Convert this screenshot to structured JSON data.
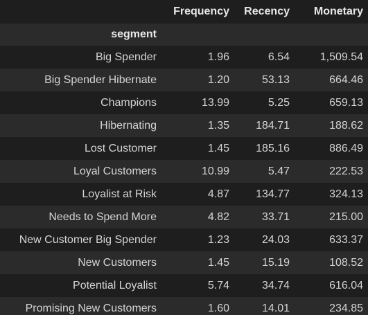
{
  "table": {
    "index_name": "segment",
    "columns": [
      "Frequency",
      "Recency",
      "Monetary"
    ],
    "rows": [
      {
        "segment": "Big Spender",
        "frequency": "1.96",
        "recency": "6.54",
        "monetary": "1,509.54"
      },
      {
        "segment": "Big Spender Hibernate",
        "frequency": "1.20",
        "recency": "53.13",
        "monetary": "664.46"
      },
      {
        "segment": "Champions",
        "frequency": "13.99",
        "recency": "5.25",
        "monetary": "659.13"
      },
      {
        "segment": "Hibernating",
        "frequency": "1.35",
        "recency": "184.71",
        "monetary": "188.62"
      },
      {
        "segment": "Lost Customer",
        "frequency": "1.45",
        "recency": "185.16",
        "monetary": "886.49"
      },
      {
        "segment": "Loyal Customers",
        "frequency": "10.99",
        "recency": "5.47",
        "monetary": "222.53"
      },
      {
        "segment": "Loyalist at Risk",
        "frequency": "4.87",
        "recency": "134.77",
        "monetary": "324.13"
      },
      {
        "segment": "Needs to Spend More",
        "frequency": "4.82",
        "recency": "33.71",
        "monetary": "215.00"
      },
      {
        "segment": "New Customer Big Spender",
        "frequency": "1.23",
        "recency": "24.03",
        "monetary": "633.37"
      },
      {
        "segment": "New Customers",
        "frequency": "1.45",
        "recency": "15.19",
        "monetary": "108.52"
      },
      {
        "segment": "Potential Loyalist",
        "frequency": "5.74",
        "recency": "34.74",
        "monetary": "616.04"
      },
      {
        "segment": "Promising New Customers",
        "frequency": "1.60",
        "recency": "14.01",
        "monetary": "234.85"
      }
    ]
  },
  "colors": {
    "background": "#1e1e1e",
    "stripe": "#2b2b2b",
    "text": "#d4d4d4",
    "header_text": "#e8e8e8"
  }
}
